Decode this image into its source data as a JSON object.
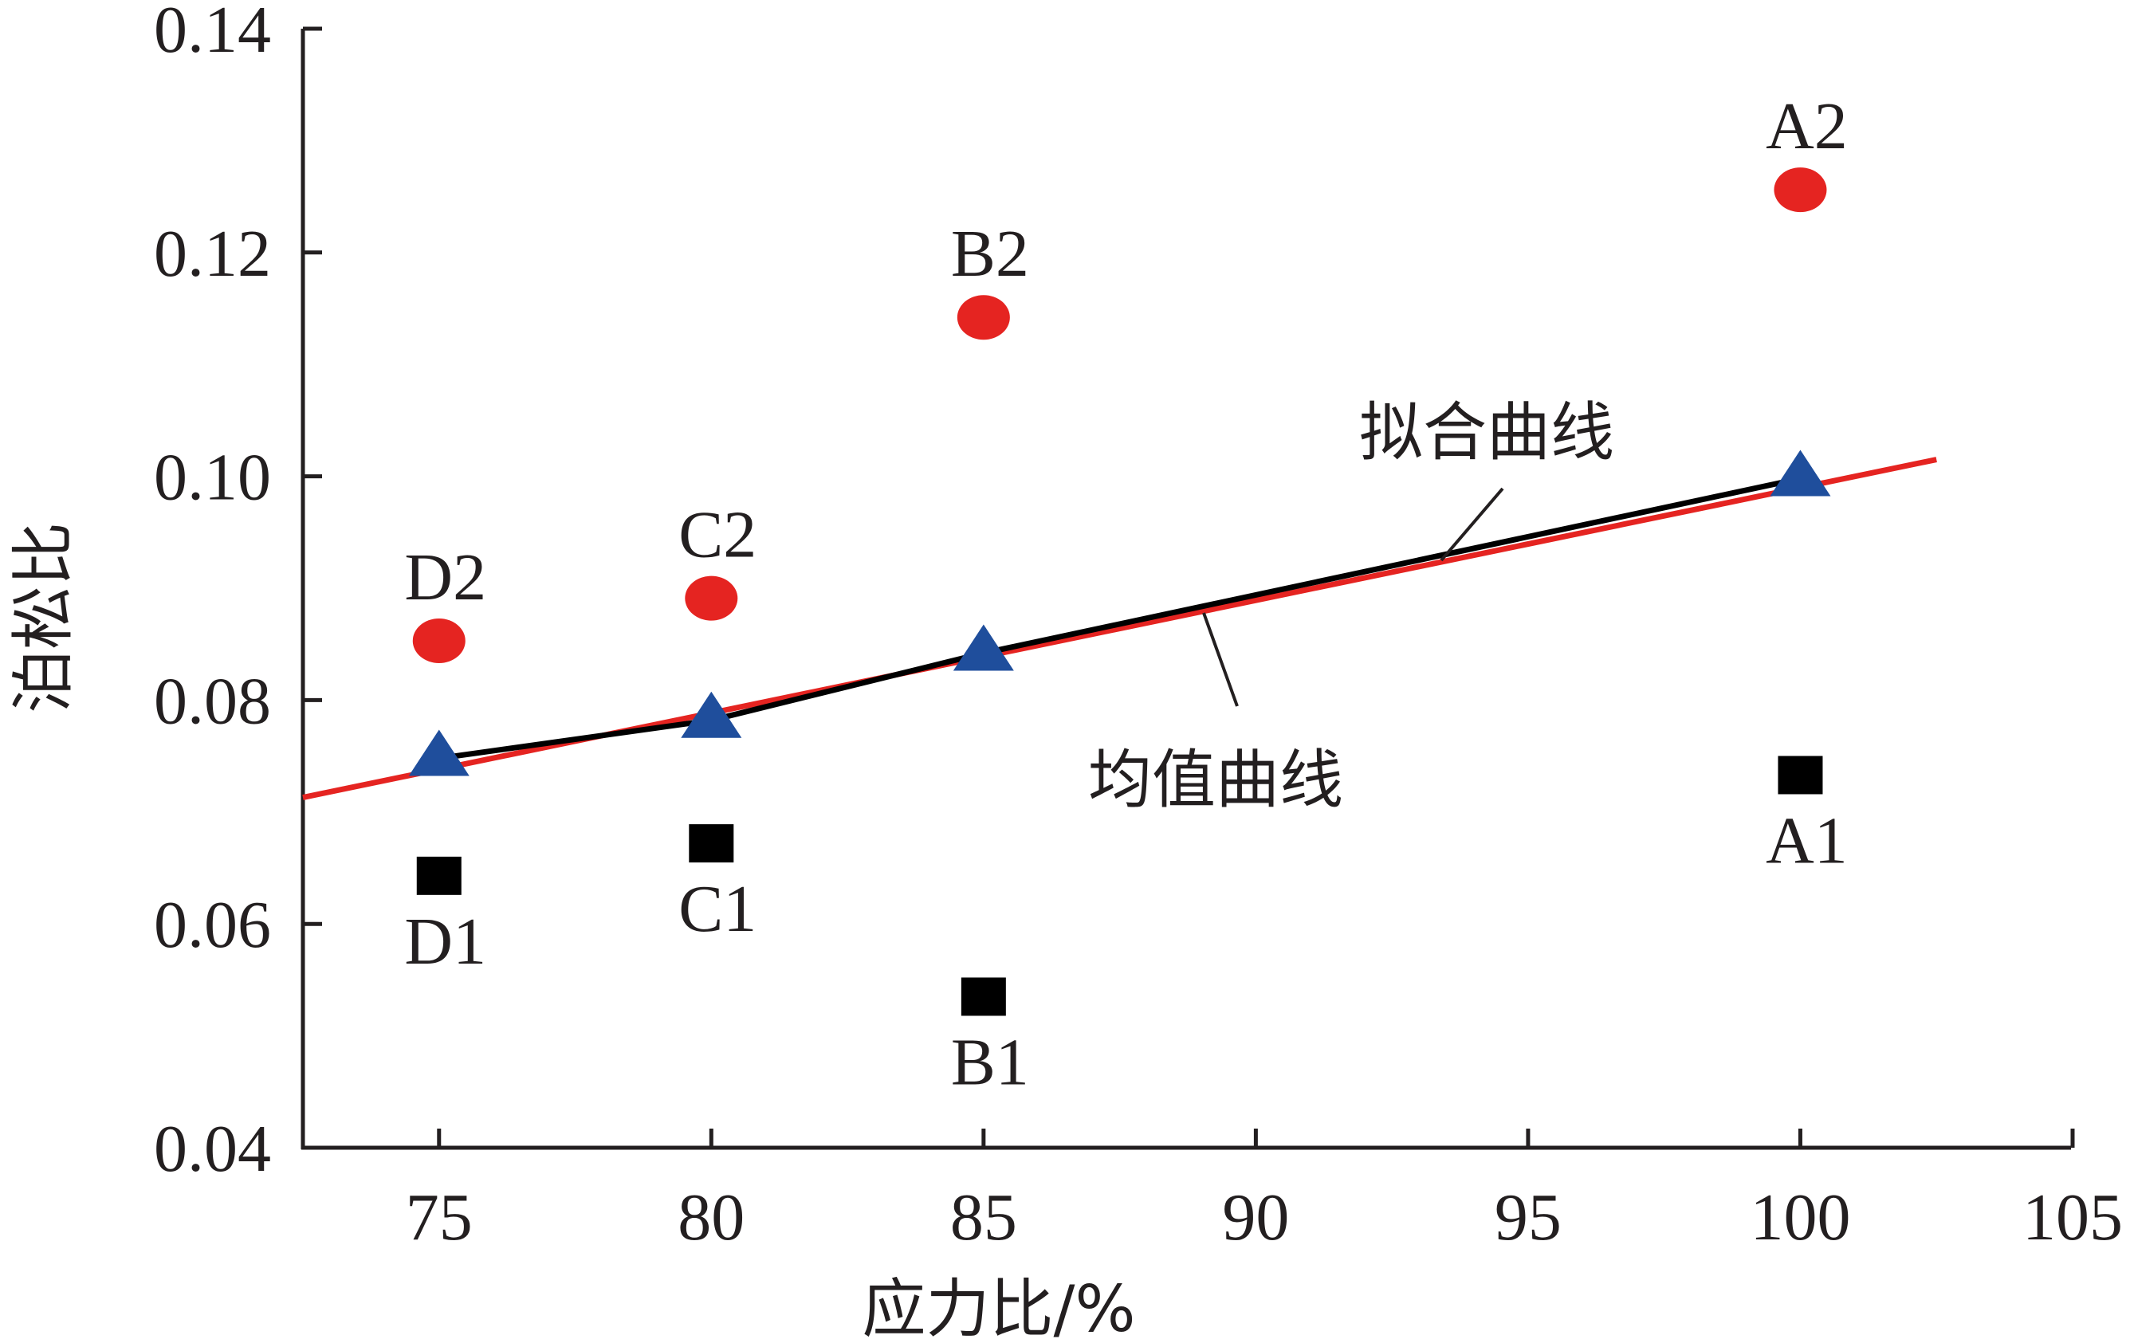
{
  "chart_data": {
    "type": "scatter",
    "xlabel": "应力比/%",
    "ylabel": "泊松比",
    "xlim": [
      72.5,
      105
    ],
    "ylim": [
      0.04,
      0.14
    ],
    "xticks": [
      75,
      80,
      85,
      90,
      95,
      100,
      105
    ],
    "yticks": [
      "0.04",
      "0.06",
      "0.08",
      "0.10",
      "0.12",
      "0.14"
    ],
    "grid": false,
    "series": [
      {
        "marker": "square",
        "color": "#000000",
        "points": [
          {
            "label": "D1",
            "x": 75,
            "y": 0.0643
          },
          {
            "label": "C1",
            "x": 80,
            "y": 0.0672
          },
          {
            "label": "B1",
            "x": 85,
            "y": 0.0535
          },
          {
            "label": "A1",
            "x": 100,
            "y": 0.0733
          }
        ]
      },
      {
        "marker": "circle",
        "color": "#e52421",
        "points": [
          {
            "label": "D2",
            "x": 75,
            "y": 0.0853
          },
          {
            "label": "C2",
            "x": 80,
            "y": 0.0891
          },
          {
            "label": "B2",
            "x": 85,
            "y": 0.1142
          },
          {
            "label": "A2",
            "x": 100,
            "y": 0.1256
          }
        ]
      },
      {
        "marker": "triangle",
        "color": "#1f4e9c",
        "points": [
          {
            "x": 75,
            "y": 0.0748
          },
          {
            "x": 80,
            "y": 0.0782
          },
          {
            "x": 85,
            "y": 0.0842
          },
          {
            "x": 100,
            "y": 0.0998
          }
        ]
      }
    ],
    "mean_curve": {
      "label": "均值曲线",
      "color": "#000000",
      "x": [
        75,
        80,
        85,
        100
      ],
      "y": [
        0.0748,
        0.0782,
        0.0842,
        0.0998
      ]
    },
    "fit_line": {
      "label": "拟合曲线",
      "color": "#e52421",
      "x": [
        72.5,
        102.5
      ],
      "y": [
        0.0713,
        0.1015
      ]
    }
  }
}
